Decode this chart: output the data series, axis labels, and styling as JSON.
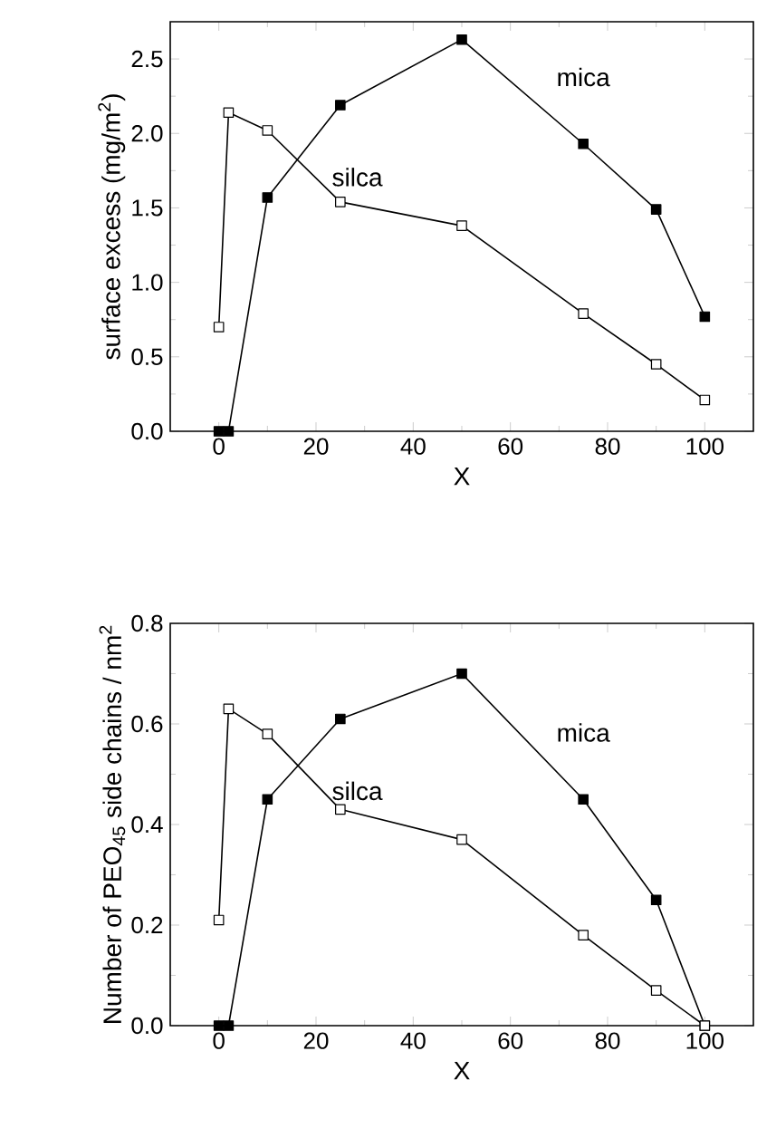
{
  "chart_data": [
    {
      "type": "line",
      "ylabel": "surface excess  (mg/m$^{2}$)",
      "xlabel": "X",
      "marker": "square",
      "grid": false,
      "legend": false,
      "xlim": [
        -10,
        110
      ],
      "xticks": [
        0,
        20,
        40,
        60,
        80,
        100
      ],
      "ylim": [
        0,
        2.75
      ],
      "yticks": [
        {
          "value": 0,
          "label": "0.0"
        },
        0.5,
        {
          "value": 1,
          "label": "1.0"
        },
        1.5,
        {
          "value": 2,
          "label": "2.0"
        },
        2.5
      ],
      "series": [
        {
          "name": "mica",
          "color": "#000000",
          "x": [
            0,
            2,
            10,
            25,
            50,
            75,
            90,
            100
          ],
          "values": [
            0,
            0,
            1.57,
            2.19,
            2.63,
            1.93,
            1.49,
            0.77
          ]
        },
        {
          "name": "silca",
          "color": "#ffffff",
          "x": [
            0,
            2,
            10,
            25,
            50,
            75,
            90,
            100
          ],
          "values": [
            0.7,
            2.14,
            2.02,
            1.54,
            1.38,
            0.79,
            0.45,
            0.21
          ]
        }
      ]
    },
    {
      "type": "line",
      "ylabel": "Number of PEO$_{45}$ side chains / nm$^{2}$",
      "xlabel": "X",
      "marker": "square",
      "grid": false,
      "legend": false,
      "xlim": [
        -10,
        110
      ],
      "xticks": [
        0,
        20,
        40,
        60,
        80,
        100
      ],
      "ylim": [
        0,
        0.8
      ],
      "yticks": [
        {
          "value": 0,
          "label": "0.0"
        },
        0.2,
        0.4,
        0.6,
        0.8
      ],
      "series": [
        {
          "name": "mica",
          "color": "#000000",
          "x": [
            0,
            2,
            10,
            25,
            50,
            75,
            90,
            100
          ],
          "values": [
            0,
            0,
            0.45,
            0.61,
            0.7,
            0.45,
            0.25,
            0
          ]
        },
        {
          "name": "silca",
          "color": "#ffffff",
          "x": [
            0,
            2,
            10,
            25,
            50,
            75,
            90,
            100
          ],
          "values": [
            0.21,
            0.63,
            0.58,
            0.43,
            0.37,
            0.18,
            0.07,
            0
          ]
        }
      ]
    }
  ]
}
